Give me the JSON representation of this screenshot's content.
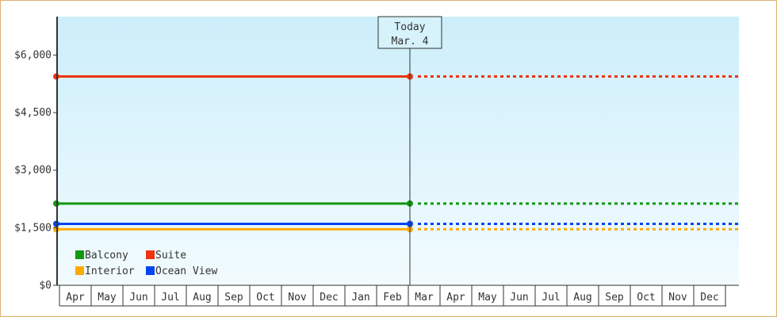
{
  "chart_data": {
    "type": "line",
    "title": "",
    "xlabel": "",
    "ylabel": "",
    "ylim": [
      0,
      7000
    ],
    "yticks": [
      0,
      1500,
      3000,
      4500,
      6000
    ],
    "ytick_labels": [
      "$0",
      "$1,500",
      "$3,000",
      "$4,500",
      "$6,000"
    ],
    "categories": [
      "Apr",
      "May",
      "Jun",
      "Jul",
      "Aug",
      "Sep",
      "Oct",
      "Nov",
      "Dec",
      "Jan",
      "Feb",
      "Mar",
      "Apr",
      "May",
      "Jun",
      "Jul",
      "Aug",
      "Sep",
      "Oct",
      "Nov",
      "Dec"
    ],
    "today_marker": {
      "label_line1": "Today",
      "label_line2": "Mar. 4",
      "category_index": 11
    },
    "series": [
      {
        "name": "Balcony",
        "value": 2130,
        "color": "#119911"
      },
      {
        "name": "Suite",
        "value": 5440,
        "color": "#ee3311"
      },
      {
        "name": "Interior",
        "value": 1460,
        "color": "#ffaa00"
      },
      {
        "name": "Ocean View",
        "value": 1600,
        "color": "#0044ee"
      }
    ],
    "legend_position": "bottom-left",
    "grid": false,
    "background_gradient": [
      "#cceefa",
      "#f2fbfe"
    ]
  }
}
